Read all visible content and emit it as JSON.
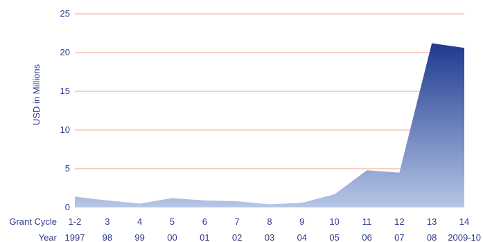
{
  "chart_data": {
    "type": "area",
    "ylabel": "USD in Millions",
    "ylim": [
      0,
      25
    ],
    "yticks": [
      0,
      5,
      10,
      15,
      20,
      25
    ],
    "grid": true,
    "row_labels": {
      "grant_cycle": "Grant Cycle",
      "year": "Year"
    },
    "grant_cycles": [
      "1-2",
      "3",
      "4",
      "5",
      "6",
      "7",
      "8",
      "9",
      "10",
      "11",
      "12",
      "13",
      "14"
    ],
    "years": [
      "1997",
      "98",
      "99",
      "00",
      "01",
      "02",
      "03",
      "04",
      "05",
      "06",
      "07",
      "08",
      "2009-10"
    ],
    "series": [
      {
        "values": [
          1.4,
          0.9,
          0.5,
          1.2,
          0.9,
          0.8,
          0.4,
          0.6,
          1.7,
          4.8,
          4.5,
          21.2,
          20.6
        ]
      }
    ]
  },
  "colors": {
    "gridline": "#f4a08a",
    "text": "#2b3990",
    "area_top": "#1f3a8f",
    "area_bottom": "#b6c6e6"
  }
}
